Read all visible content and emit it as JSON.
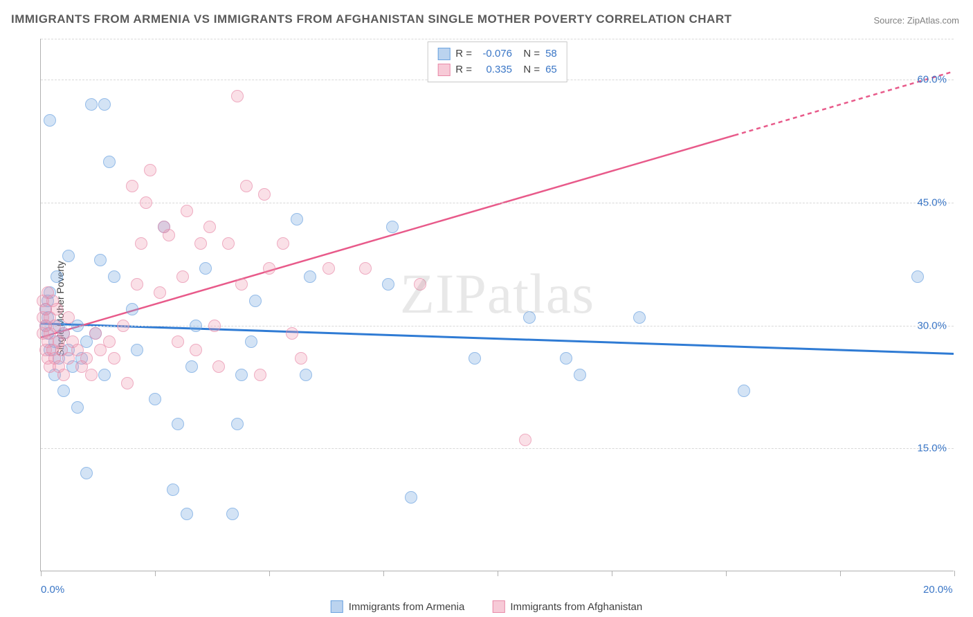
{
  "title": "IMMIGRANTS FROM ARMENIA VS IMMIGRANTS FROM AFGHANISTAN SINGLE MOTHER POVERTY CORRELATION CHART",
  "source": "Source: ZipAtlas.com",
  "watermark": "ZIPatlas",
  "chart": {
    "type": "scatter",
    "ylabel": "Single Mother Poverty",
    "xlim": [
      0,
      20
    ],
    "ylim": [
      0,
      65
    ],
    "y_ticks": [
      15,
      30,
      45,
      60
    ],
    "y_tick_labels": [
      "15.0%",
      "30.0%",
      "45.0%",
      "60.0%"
    ],
    "x_ticks": [
      0,
      2.5,
      5,
      7.5,
      10,
      12.5,
      15,
      17.5,
      20
    ],
    "x_tick_labels_shown": {
      "0": "0.0%",
      "20": "20.0%"
    },
    "grid_color": "#d8d8d8",
    "axis_color": "#b0b0b0",
    "background_color": "#ffffff",
    "marker_size": 18,
    "series": [
      {
        "name": "Immigrants from Armenia",
        "color_fill": "rgba(120,168,224,0.45)",
        "color_stroke": "#6aa2e0",
        "class": "blue",
        "R": "-0.076",
        "N": "58",
        "trend": {
          "x1": 0,
          "y1": 30.2,
          "x2": 20,
          "y2": 26.5,
          "color": "#2f7bd4",
          "width": 3,
          "dash_from_x": null
        },
        "points": [
          [
            0.1,
            30
          ],
          [
            0.1,
            32
          ],
          [
            0.15,
            29
          ],
          [
            0.15,
            31
          ],
          [
            0.15,
            33
          ],
          [
            0.2,
            27
          ],
          [
            0.2,
            34
          ],
          [
            0.2,
            55
          ],
          [
            0.3,
            28
          ],
          [
            0.3,
            24
          ],
          [
            0.35,
            36
          ],
          [
            0.4,
            26
          ],
          [
            0.4,
            30
          ],
          [
            0.5,
            22
          ],
          [
            0.5,
            29
          ],
          [
            0.6,
            38.5
          ],
          [
            0.6,
            27
          ],
          [
            0.7,
            25
          ],
          [
            0.8,
            30
          ],
          [
            0.8,
            20
          ],
          [
            0.9,
            26
          ],
          [
            1.0,
            12
          ],
          [
            1.0,
            28
          ],
          [
            1.1,
            57
          ],
          [
            1.2,
            29
          ],
          [
            1.3,
            38
          ],
          [
            1.4,
            57
          ],
          [
            1.4,
            24
          ],
          [
            1.5,
            50
          ],
          [
            1.6,
            36
          ],
          [
            2.0,
            32
          ],
          [
            2.1,
            27
          ],
          [
            2.5,
            21
          ],
          [
            2.7,
            42
          ],
          [
            2.9,
            10
          ],
          [
            3.0,
            18
          ],
          [
            3.2,
            7
          ],
          [
            3.3,
            25
          ],
          [
            3.4,
            30
          ],
          [
            3.6,
            37
          ],
          [
            4.2,
            7
          ],
          [
            4.3,
            18
          ],
          [
            4.4,
            24
          ],
          [
            4.6,
            28
          ],
          [
            4.7,
            33
          ],
          [
            5.6,
            43
          ],
          [
            5.8,
            24
          ],
          [
            5.9,
            36
          ],
          [
            7.6,
            35
          ],
          [
            7.7,
            42
          ],
          [
            8.1,
            9
          ],
          [
            9.5,
            26
          ],
          [
            10.7,
            31
          ],
          [
            11.5,
            26
          ],
          [
            11.8,
            24
          ],
          [
            13.1,
            31
          ],
          [
            15.4,
            22
          ],
          [
            19.2,
            36
          ]
        ]
      },
      {
        "name": "Immigrants from Afghanistan",
        "color_fill": "rgba(240,150,175,0.40)",
        "color_stroke": "#e88aa8",
        "class": "pink",
        "R": "0.335",
        "N": "65",
        "trend": {
          "x1": 0,
          "y1": 28.5,
          "x2": 20,
          "y2": 61,
          "color": "#e85a8a",
          "width": 2.5,
          "dash_from_x": 15.2
        },
        "points": [
          [
            0.05,
            31
          ],
          [
            0.05,
            29
          ],
          [
            0.05,
            33
          ],
          [
            0.1,
            30
          ],
          [
            0.1,
            27
          ],
          [
            0.1,
            32
          ],
          [
            0.15,
            26
          ],
          [
            0.15,
            28
          ],
          [
            0.15,
            34
          ],
          [
            0.2,
            25
          ],
          [
            0.2,
            31
          ],
          [
            0.2,
            29
          ],
          [
            0.25,
            27
          ],
          [
            0.25,
            33
          ],
          [
            0.3,
            30
          ],
          [
            0.3,
            26
          ],
          [
            0.35,
            32
          ],
          [
            0.4,
            28
          ],
          [
            0.4,
            25
          ],
          [
            0.45,
            27
          ],
          [
            0.5,
            24
          ],
          [
            0.5,
            29
          ],
          [
            0.6,
            26
          ],
          [
            0.6,
            31
          ],
          [
            0.7,
            28
          ],
          [
            0.8,
            27
          ],
          [
            0.9,
            25
          ],
          [
            1.0,
            26
          ],
          [
            1.1,
            24
          ],
          [
            1.2,
            29
          ],
          [
            1.3,
            27
          ],
          [
            1.5,
            28
          ],
          [
            1.6,
            26
          ],
          [
            1.8,
            30
          ],
          [
            1.9,
            23
          ],
          [
            2.0,
            47
          ],
          [
            2.1,
            35
          ],
          [
            2.2,
            40
          ],
          [
            2.3,
            45
          ],
          [
            2.4,
            49
          ],
          [
            2.6,
            34
          ],
          [
            2.7,
            42
          ],
          [
            2.8,
            41
          ],
          [
            3.0,
            28
          ],
          [
            3.1,
            36
          ],
          [
            3.2,
            44
          ],
          [
            3.4,
            27
          ],
          [
            3.5,
            40
          ],
          [
            3.7,
            42
          ],
          [
            3.8,
            30
          ],
          [
            3.9,
            25
          ],
          [
            4.1,
            40
          ],
          [
            4.3,
            58
          ],
          [
            4.4,
            35
          ],
          [
            4.5,
            47
          ],
          [
            4.8,
            24
          ],
          [
            4.9,
            46
          ],
          [
            5.0,
            37
          ],
          [
            5.3,
            40
          ],
          [
            5.5,
            29
          ],
          [
            5.7,
            26
          ],
          [
            6.3,
            37
          ],
          [
            7.1,
            37
          ],
          [
            8.3,
            35
          ],
          [
            10.6,
            16
          ]
        ]
      }
    ],
    "legend_bottom": [
      {
        "class": "blue",
        "label": "Immigrants from Armenia"
      },
      {
        "class": "pink",
        "label": "Immigrants from Afghanistan"
      }
    ]
  }
}
